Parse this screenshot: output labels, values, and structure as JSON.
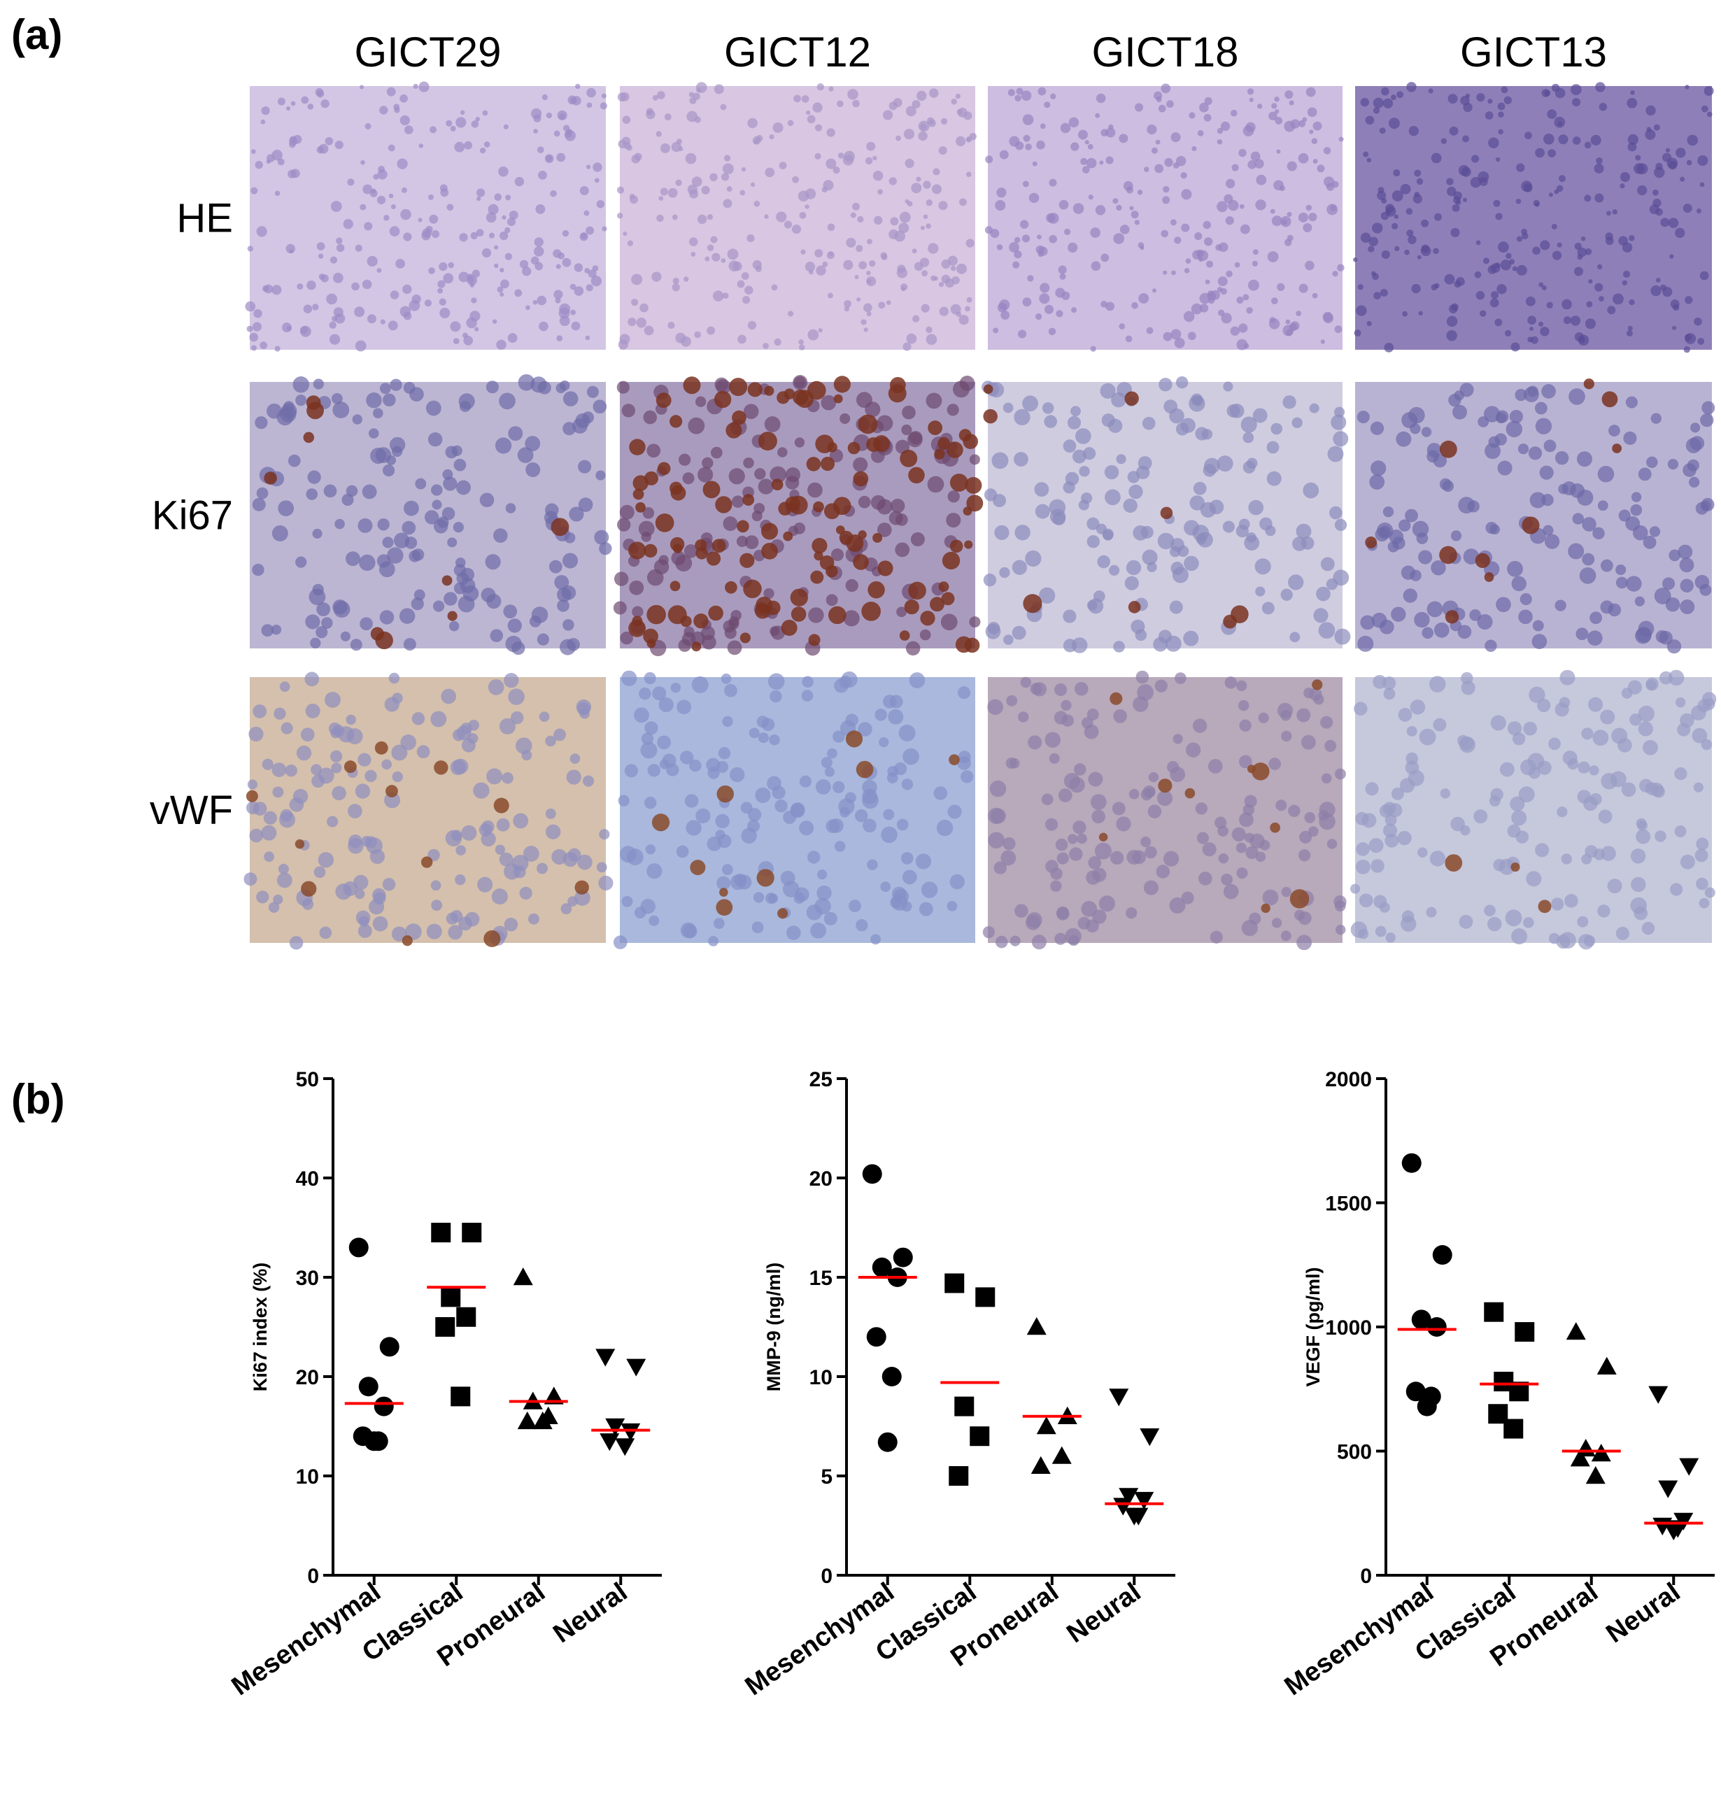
{
  "panel_a": {
    "label": "(a)",
    "columns": [
      "GICT29",
      "GICT12",
      "GICT18",
      "GICT13"
    ],
    "rows": [
      "HE",
      "Ki67",
      "vWF"
    ]
  },
  "panel_b": {
    "label": "(b)"
  },
  "chart_data": [
    {
      "type": "scatter",
      "ylabel": "Ki67 index (%)",
      "categories": [
        "Mesenchymal",
        "Classical",
        "Proneural",
        "Neural"
      ],
      "markers": [
        "circle",
        "square",
        "triangle",
        "triangle-down"
      ],
      "color": "#000000",
      "points": [
        [
          33,
          23,
          19,
          17,
          14,
          13.5,
          13.5
        ],
        [
          34.5,
          34.5,
          28,
          26,
          25,
          18
        ],
        [
          30,
          18,
          17.5,
          16,
          15.5,
          15.5
        ],
        [
          22,
          21,
          15,
          14.5,
          13.5,
          13
        ]
      ],
      "medians": [
        17.3,
        29,
        17.5,
        14.6
      ],
      "median_color": "#ff0000",
      "ylim": [
        0,
        50
      ],
      "yticks": [
        0,
        10,
        20,
        30,
        40,
        50
      ]
    },
    {
      "type": "scatter",
      "ylabel": "MMP-9 (ng/ml)",
      "categories": [
        "Mesenchymal",
        "Classical",
        "Proneural",
        "Neural"
      ],
      "markers": [
        "circle",
        "square",
        "triangle",
        "triangle-down"
      ],
      "color": "#000000",
      "points": [
        [
          20.2,
          16,
          15.5,
          15,
          12,
          10,
          6.7
        ],
        [
          14.7,
          14,
          8.5,
          7,
          5
        ],
        [
          12.5,
          8,
          7.5,
          6,
          5.5
        ],
        [
          9,
          7,
          4,
          3.8,
          3.5,
          3,
          3
        ]
      ],
      "medians": [
        15,
        9.7,
        8,
        3.6
      ],
      "median_color": "#ff0000",
      "ylim": [
        0,
        25
      ],
      "yticks": [
        0,
        5,
        10,
        15,
        20,
        25
      ]
    },
    {
      "type": "scatter",
      "ylabel": "VEGF (pg/ml)",
      "categories": [
        "Mesenchymal",
        "Classical",
        "Proneural",
        "Neural"
      ],
      "markers": [
        "circle",
        "square",
        "triangle",
        "triangle-down"
      ],
      "color": "#000000",
      "points": [
        [
          1660,
          1290,
          1030,
          1000,
          740,
          720,
          680
        ],
        [
          1060,
          980,
          780,
          740,
          650,
          590
        ],
        [
          980,
          840,
          510,
          490,
          470,
          400
        ],
        [
          730,
          440,
          350,
          220,
          200,
          190,
          180
        ]
      ],
      "medians": [
        990,
        770,
        500,
        210
      ],
      "median_color": "#ff0000",
      "ylim": [
        0,
        2000
      ],
      "yticks": [
        0,
        500,
        1000,
        1500,
        2000
      ]
    }
  ]
}
